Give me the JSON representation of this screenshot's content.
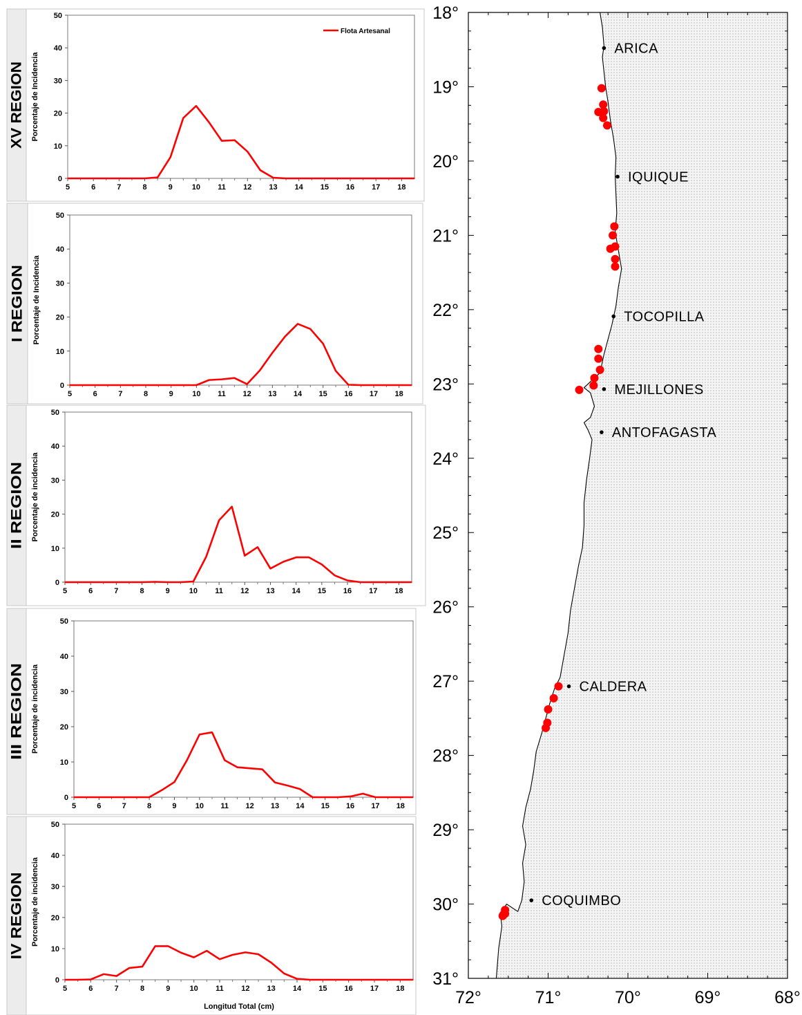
{
  "panels": [
    {
      "region_label": "XV REGION",
      "ylabel": "Porcentaje de Incidencia",
      "xlabel": "",
      "legend": "Flota Artesanal"
    },
    {
      "region_label": "I REGION",
      "ylabel": "Porcentaje de Incidencia",
      "xlabel": "",
      "legend": ""
    },
    {
      "region_label": "II REGION",
      "ylabel": "Porcentaje de incidencia",
      "xlabel": "",
      "legend": ""
    },
    {
      "region_label": "III REGION",
      "ylabel": "Porcentaje de incidencia",
      "xlabel": "",
      "legend": ""
    },
    {
      "region_label": "IV REGION",
      "ylabel": "Porcentaje de incidencia",
      "xlabel": "Longitud Total (cm)",
      "legend": ""
    }
  ],
  "map": {
    "latitude_ticks": [
      "18°",
      "19°",
      "20°",
      "21°",
      "22°",
      "23°",
      "24°",
      "25°",
      "26°",
      "27°",
      "28°",
      "29°",
      "30°",
      "31°"
    ],
    "longitude_ticks": [
      "72°",
      "71°",
      "70°",
      "69°",
      "68°"
    ],
    "cities": [
      {
        "name": "ARICA",
        "lon": -70.3,
        "lat": -18.48
      },
      {
        "name": "IQUIQUE",
        "lon": -70.13,
        "lat": -20.21
      },
      {
        "name": "TOCOPILLA",
        "lon": -70.18,
        "lat": -22.09
      },
      {
        "name": "MEJILLONES",
        "lon": -70.3,
        "lat": -23.07
      },
      {
        "name": "ANTOFAGASTA",
        "lon": -70.33,
        "lat": -23.65
      },
      {
        "name": "CALDERA",
        "lon": -70.74,
        "lat": -27.07
      },
      {
        "name": "COQUIMBO",
        "lon": -71.21,
        "lat": -29.95
      }
    ],
    "sampling_points": [
      {
        "lon": -70.33,
        "lat": -19.02
      },
      {
        "lon": -70.31,
        "lat": -19.24
      },
      {
        "lon": -70.3,
        "lat": -19.33
      },
      {
        "lon": -70.37,
        "lat": -19.34
      },
      {
        "lon": -70.31,
        "lat": -19.42
      },
      {
        "lon": -70.26,
        "lat": -19.52
      },
      {
        "lon": -70.17,
        "lat": -20.88
      },
      {
        "lon": -70.19,
        "lat": -21.0
      },
      {
        "lon": -70.16,
        "lat": -21.15
      },
      {
        "lon": -70.22,
        "lat": -21.18
      },
      {
        "lon": -70.16,
        "lat": -21.32
      },
      {
        "lon": -70.16,
        "lat": -21.42
      },
      {
        "lon": -70.37,
        "lat": -22.53
      },
      {
        "lon": -70.37,
        "lat": -22.66
      },
      {
        "lon": -70.35,
        "lat": -22.81
      },
      {
        "lon": -70.42,
        "lat": -22.92
      },
      {
        "lon": -70.43,
        "lat": -23.02
      },
      {
        "lon": -70.61,
        "lat": -23.08
      },
      {
        "lon": -70.87,
        "lat": -27.07
      },
      {
        "lon": -70.93,
        "lat": -27.23
      },
      {
        "lon": -71.0,
        "lat": -27.38
      },
      {
        "lon": -71.01,
        "lat": -27.56
      },
      {
        "lon": -71.03,
        "lat": -27.63
      },
      {
        "lon": -71.54,
        "lat": -30.08
      },
      {
        "lon": -71.56,
        "lat": -30.14
      },
      {
        "lon": -71.57,
        "lat": -30.16
      },
      {
        "lon": -71.54,
        "lat": -30.13
      }
    ],
    "colors": {
      "point": "#ff0000",
      "land": "#ececec"
    }
  },
  "chart_data": [
    {
      "type": "line",
      "title": "",
      "xlabel": "",
      "ylabel": "Porcentaje de Incidencia",
      "x": [
        5,
        5.5,
        6,
        6.5,
        7,
        7.5,
        8,
        8.5,
        9,
        9.5,
        10,
        10.5,
        11,
        11.5,
        12,
        12.5,
        13,
        13.5,
        14,
        14.5,
        15,
        15.5,
        16,
        16.5,
        17,
        17.5,
        18,
        18.5
      ],
      "series": [
        {
          "name": "Flota Artesanal",
          "values": [
            0,
            0,
            0,
            0,
            0,
            0,
            0,
            0.3,
            6.5,
            18.5,
            22.2,
            17.2,
            11.5,
            11.7,
            8.2,
            2.5,
            0.2,
            0,
            0,
            0,
            0,
            0,
            0,
            0,
            0,
            0,
            0,
            0
          ]
        }
      ],
      "xlim": [
        5,
        18.5
      ],
      "ylim": [
        0,
        50
      ],
      "xticks": [
        5,
        6,
        7,
        8,
        9,
        10,
        11,
        12,
        13,
        14,
        15,
        16,
        17,
        18
      ],
      "yticks": [
        0,
        10,
        20,
        30,
        40,
        50
      ],
      "legend_position": "top-right",
      "grid": false,
      "color": "#ff0000"
    },
    {
      "type": "line",
      "title": "",
      "xlabel": "",
      "ylabel": "Porcentaje de Incidencia",
      "x": [
        5,
        5.5,
        6,
        6.5,
        7,
        7.5,
        8,
        8.5,
        9,
        9.5,
        10,
        10.5,
        11,
        11.5,
        12,
        12.5,
        13,
        13.5,
        14,
        14.5,
        15,
        15.5,
        16,
        16.5,
        17,
        17.5,
        18,
        18.5
      ],
      "series": [
        {
          "values": [
            0,
            0,
            0,
            0,
            0,
            0,
            0,
            0,
            0,
            0,
            0,
            1.5,
            1.7,
            2.1,
            0.3,
            4.3,
            9.5,
            14.3,
            18,
            16.5,
            12.2,
            4.2,
            0.1,
            0,
            0,
            0,
            0,
            0
          ]
        }
      ],
      "xlim": [
        5,
        18.5
      ],
      "ylim": [
        0,
        50
      ],
      "xticks": [
        5,
        6,
        7,
        8,
        9,
        10,
        11,
        12,
        13,
        14,
        15,
        16,
        17,
        18
      ],
      "yticks": [
        0,
        10,
        20,
        30,
        40,
        50
      ],
      "grid": false,
      "color": "#ff0000"
    },
    {
      "type": "line",
      "title": "",
      "xlabel": "",
      "ylabel": "Porcentaje de incidencia",
      "x": [
        5,
        5.5,
        6,
        6.5,
        7,
        7.5,
        8,
        8.5,
        9,
        9.5,
        10,
        10.5,
        11,
        11.5,
        12,
        12.5,
        13,
        13.5,
        14,
        14.5,
        15,
        15.5,
        16,
        16.5,
        17,
        17.5,
        18,
        18.5
      ],
      "series": [
        {
          "values": [
            0,
            0,
            0,
            0,
            0,
            0,
            0,
            0.1,
            0,
            0,
            0.2,
            7.5,
            18.2,
            22.2,
            7.8,
            10.3,
            4,
            6,
            7.3,
            7.3,
            5.2,
            2,
            0.5,
            0,
            0,
            0,
            0,
            0
          ]
        }
      ],
      "xlim": [
        5,
        18.5
      ],
      "ylim": [
        0,
        50
      ],
      "xticks": [
        5,
        6,
        7,
        8,
        9,
        10,
        11,
        12,
        13,
        14,
        15,
        16,
        17,
        18
      ],
      "yticks": [
        0,
        10,
        20,
        30,
        40,
        50
      ],
      "grid": false,
      "color": "#ff0000"
    },
    {
      "type": "line",
      "title": "",
      "xlabel": "",
      "ylabel": "Porcentaje de incidencia",
      "x": [
        5,
        5.5,
        6,
        6.5,
        7,
        7.5,
        8,
        8.5,
        9,
        9.5,
        10,
        10.5,
        11,
        11.5,
        12,
        12.5,
        13,
        13.5,
        14,
        14.5,
        15,
        15.5,
        16,
        16.5,
        17,
        17.5,
        18,
        18.5
      ],
      "series": [
        {
          "values": [
            0,
            0,
            0,
            0,
            0,
            0,
            0,
            2,
            4.3,
            10.5,
            17.8,
            18.4,
            10.5,
            8.5,
            8.2,
            7.9,
            4.2,
            3.3,
            2.3,
            0,
            0,
            0,
            0.2,
            1,
            0,
            0,
            0,
            0
          ]
        }
      ],
      "xlim": [
        5,
        18.5
      ],
      "ylim": [
        0,
        50
      ],
      "xticks": [
        5,
        6,
        7,
        8,
        9,
        10,
        11,
        12,
        13,
        14,
        15,
        16,
        17,
        18
      ],
      "yticks": [
        0,
        10,
        20,
        30,
        40,
        50
      ],
      "grid": false,
      "color": "#ff0000"
    },
    {
      "type": "line",
      "title": "",
      "xlabel": "Longitud Total (cm)",
      "ylabel": "Porcentaje de incidencia",
      "x": [
        5,
        5.5,
        6,
        6.5,
        7,
        7.5,
        8,
        8.5,
        9,
        9.5,
        10,
        10.5,
        11,
        11.5,
        12,
        12.5,
        13,
        13.5,
        14,
        14.5,
        15,
        15.5,
        16,
        16.5,
        17,
        17.5,
        18,
        18.5
      ],
      "series": [
        {
          "values": [
            0,
            0,
            0.1,
            1.8,
            1.2,
            3.8,
            4.2,
            10.8,
            10.8,
            8.7,
            7.2,
            9.3,
            6.6,
            8,
            8.8,
            8.2,
            5.5,
            2,
            0.3,
            0,
            0,
            0,
            0,
            0,
            0,
            0,
            0,
            0
          ]
        }
      ],
      "xlim": [
        5,
        18.5
      ],
      "ylim": [
        0,
        50
      ],
      "xticks": [
        5,
        6,
        7,
        8,
        9,
        10,
        11,
        12,
        13,
        14,
        15,
        16,
        17,
        18
      ],
      "yticks": [
        0,
        10,
        20,
        30,
        40,
        50
      ],
      "grid": false,
      "color": "#ff0000"
    }
  ]
}
